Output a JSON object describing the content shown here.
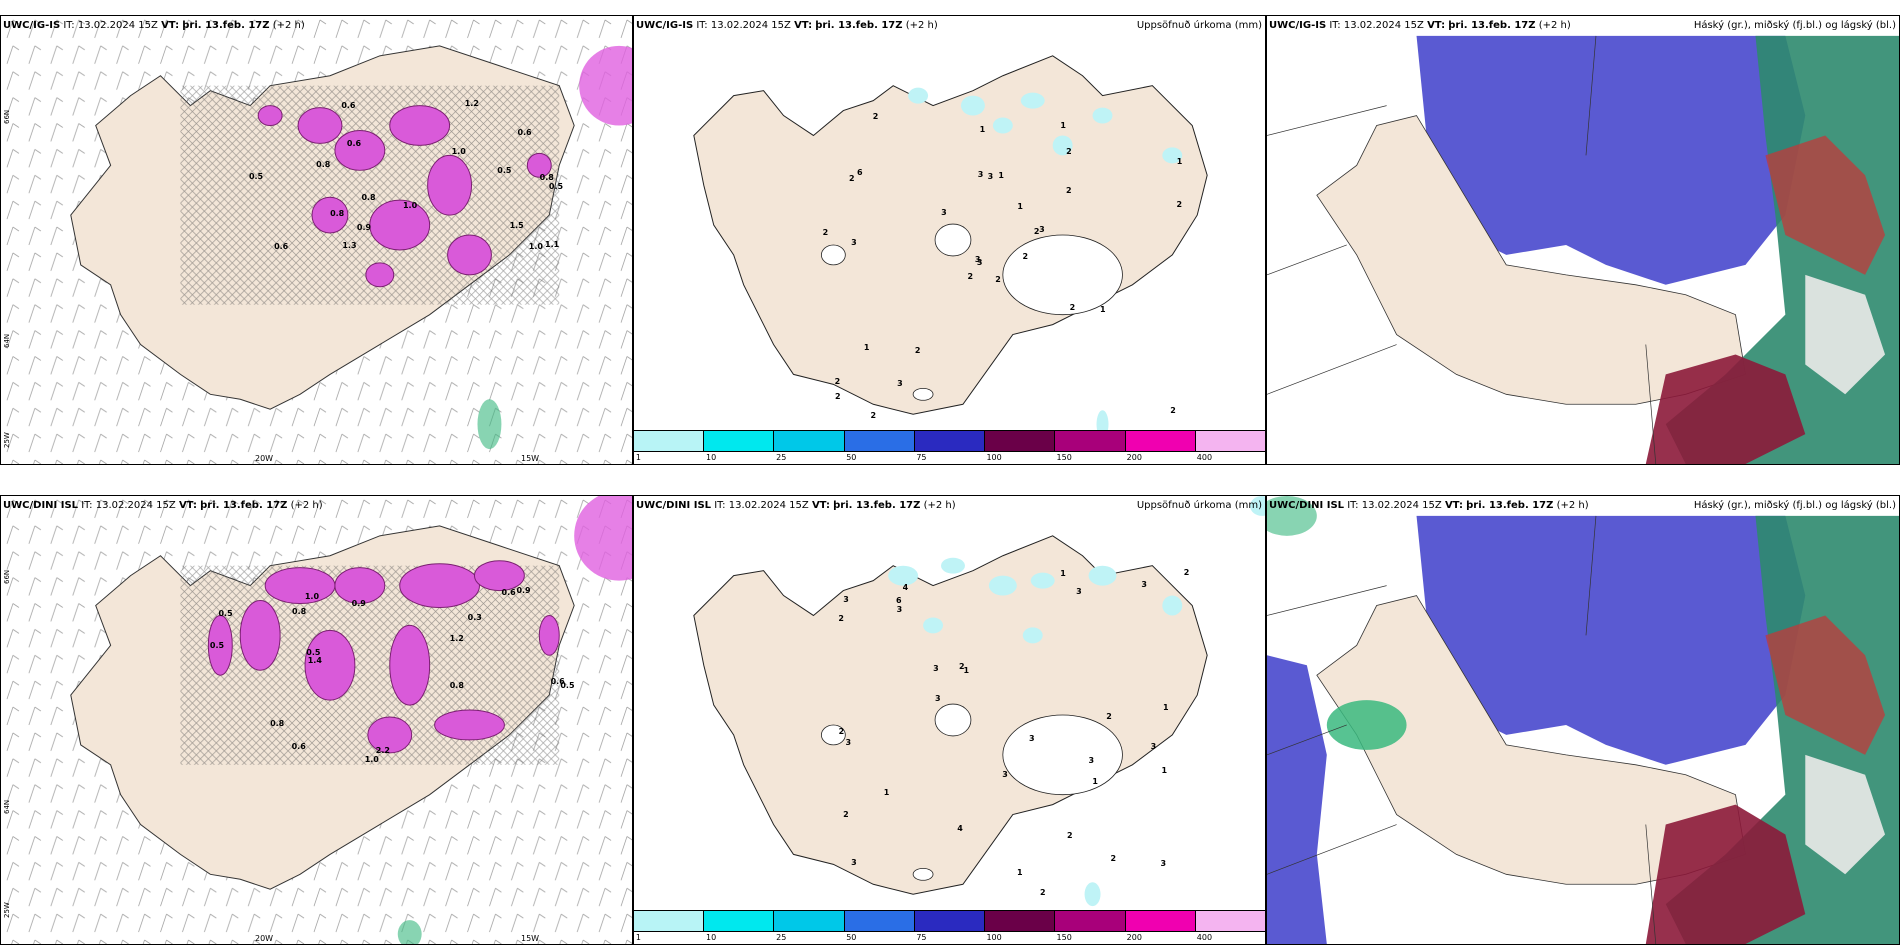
{
  "rows": [
    {
      "model_label": "UWC/IG-IS",
      "panels": [
        {
          "it_text": "IT: 13.02.2024 15Z",
          "vt_label": "VT:",
          "vt_value": "þri. 13.feb. 17Z",
          "lead": "(+2 h)",
          "right_title": ""
        },
        {
          "it_text": "IT: 13.02.2024 15Z",
          "vt_label": "VT:",
          "vt_value": "þri. 13.feb. 17Z",
          "lead": "(+2 h)",
          "right_title": "Uppsöfnuð úrkoma (mm)"
        },
        {
          "it_text": "IT: 13.02.2024 15Z",
          "vt_label": "VT:",
          "vt_value": "þri. 13.feb. 17Z",
          "lead": "(+2 h)",
          "right_title": "Háský (gr.), miðský (fj.bl.) og lágský (bl.)"
        }
      ],
      "precip_values": [
        "2",
        "2",
        "3",
        "2",
        "2",
        "2",
        "1",
        "1",
        "2",
        "2",
        "2",
        "2",
        "3",
        "1",
        "2",
        "2",
        "2",
        "3",
        "1",
        "1",
        "3",
        "2",
        "3",
        "3",
        "3",
        "1",
        "6",
        "1",
        "2",
        "2",
        "2",
        "3"
      ],
      "wind_values": [
        "0.6",
        "0.8",
        "1.0",
        "0.5",
        "0.8",
        "1.1",
        "0.9",
        "1.2",
        "1.0",
        "0.6",
        "0.8",
        "1.5",
        "0.5",
        "1.3",
        "0.6",
        "1.0",
        "0.8",
        "0.5",
        "0.6"
      ]
    },
    {
      "model_label": "UWC/DINI ISL",
      "panels": [
        {
          "it_text": "IT: 13.02.2024 15Z",
          "vt_label": "VT:",
          "vt_value": "þri. 13.feb. 17Z",
          "lead": "(+2 h)",
          "right_title": ""
        },
        {
          "it_text": "IT: 13.02.2024 15Z",
          "vt_label": "VT:",
          "vt_value": "þri. 13.feb. 17Z",
          "lead": "(+2 h)",
          "right_title": "Uppsöfnuð úrkoma (mm)"
        },
        {
          "it_text": "IT: 13.02.2024 15Z",
          "vt_label": "VT:",
          "vt_value": "þri. 13.feb. 17Z",
          "lead": "(+2 h)",
          "right_title": "Háský (gr.), miðský (fj.bl.) og lágský (bl.)"
        }
      ],
      "precip_values": [
        "3",
        "3",
        "3",
        "4",
        "1",
        "2",
        "2",
        "3",
        "3",
        "2",
        "2",
        "2",
        "3",
        "3",
        "4",
        "1",
        "3",
        "3",
        "2",
        "1",
        "2",
        "3",
        "3",
        "1",
        "1",
        "6",
        "1",
        "3",
        "3",
        "2",
        "1",
        "2"
      ],
      "wind_values": [
        "0.5",
        "0.8",
        "1.2",
        "2.2",
        "0.6",
        "1.0",
        "0.8",
        "1.4",
        "0.9",
        "0.5",
        "0.6",
        "1.0",
        "0.3",
        "0.8",
        "0.5",
        "0.6",
        "0.5",
        "0.9"
      ]
    }
  ],
  "axes": {
    "lat_top": "66N",
    "lat_mid": "64N",
    "lat_bottom": "25W",
    "lon_left": "20W",
    "lon_right": "15W",
    "lat_right_top": "66N",
    "lat_right_mid": "64N"
  },
  "colorbar": {
    "labels": [
      "1",
      "10",
      "25",
      "50",
      "75",
      "100",
      "150",
      "200",
      "400"
    ],
    "colors": [
      "#b8f4f6",
      "#00e8ee",
      "#00c8e8",
      "#2a6ee6",
      "#2a2ac0",
      "#6a0048",
      "#a8007a",
      "#f000b0",
      "#f4b4f0"
    ]
  },
  "colors": {
    "land": "#f3e6d8",
    "land_dark": "#e6d6c7",
    "precip_pink": "#e060e0",
    "precip_purple": "#9a2c8a",
    "high_cloud_blue": "#5a5ad2",
    "mid_cloud_green": "#39b87f",
    "low_cloud_red": "#8c1a3a",
    "light_cyan": "#bff3f6"
  }
}
